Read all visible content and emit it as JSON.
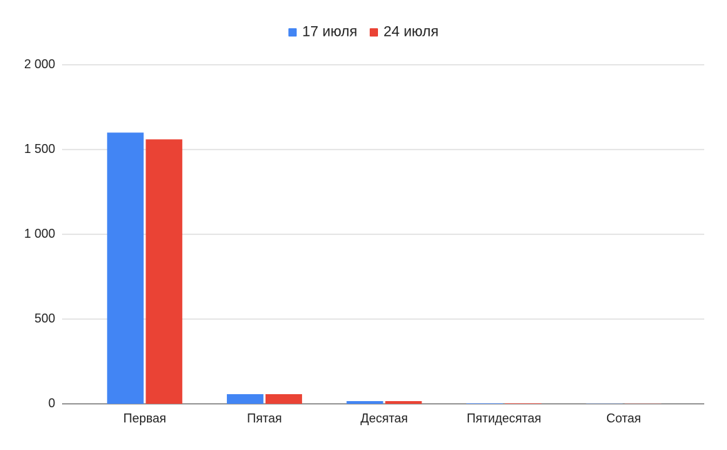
{
  "chart_data": {
    "type": "bar",
    "categories": [
      "Первая",
      "Пятая",
      "Десятая",
      "Пятидесятая",
      "Сотая"
    ],
    "series": [
      {
        "name": "17 июля",
        "color": "#4285f4",
        "values": [
          1600,
          57,
          16,
          3,
          1
        ]
      },
      {
        "name": "24 июля",
        "color": "#ea4335",
        "values": [
          1560,
          57,
          16,
          3,
          1
        ]
      }
    ],
    "ylim": [
      0,
      2000
    ],
    "yticks": [
      0,
      500,
      {
        "value": 1000,
        "label": "1 000"
      },
      {
        "value": 1500,
        "label": "1 500"
      },
      {
        "value": 2000,
        "label": "2 000"
      }
    ],
    "grid": true,
    "legend": "top"
  }
}
